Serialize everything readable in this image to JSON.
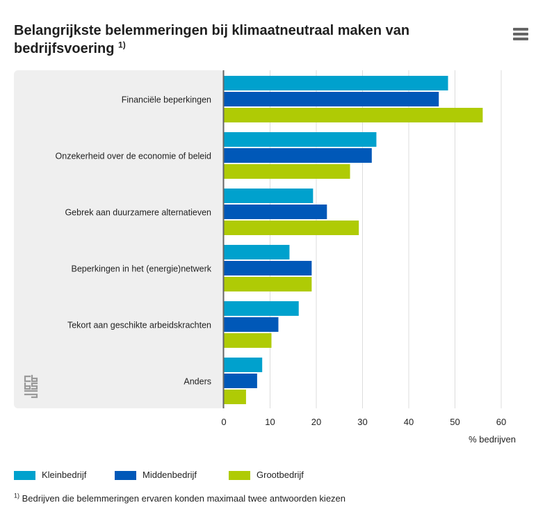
{
  "header": {
    "title": "Belangrijkste belemmeringen bij klimaatneutraal maken van bedrijfsvoering",
    "title_note": "1)"
  },
  "menu": {
    "icon": "hamburger-menu-icon"
  },
  "chart_data": {
    "type": "bar",
    "orientation": "horizontal",
    "categories": [
      "Financiële beperkingen",
      "Onzekerheid over de economie of beleid",
      "Gebrek aan duurzamere alternatieven",
      "Beperkingen in het (energie)netwerk",
      "Tekort aan geschikte arbeidskrachten",
      "Anders"
    ],
    "series": [
      {
        "name": "Kleinbedrijf",
        "color": "#00A1CD",
        "values": [
          48.5,
          33,
          19.3,
          14.2,
          16.2,
          8.3
        ]
      },
      {
        "name": "Middenbedrijf",
        "color": "#0058B8",
        "values": [
          46.5,
          32,
          22.3,
          19,
          11.8,
          7.2
        ]
      },
      {
        "name": "Grootbedrijf",
        "color": "#AFCB05",
        "values": [
          56,
          27.3,
          29.2,
          19,
          10.3,
          4.8
        ]
      }
    ],
    "xlabel": "% bedrijven",
    "xlim": [
      0,
      60
    ],
    "xticks": [
      0,
      10,
      20,
      30,
      40,
      50,
      60
    ],
    "grid": true,
    "legend_position": "bottom-left"
  },
  "footnote": {
    "marker": "1)",
    "text": "Bedrijven die belemmeringen ervaren konden maximaal twee antwoorden kiezen"
  },
  "logo": {
    "icon": "cbs-logo-icon"
  }
}
